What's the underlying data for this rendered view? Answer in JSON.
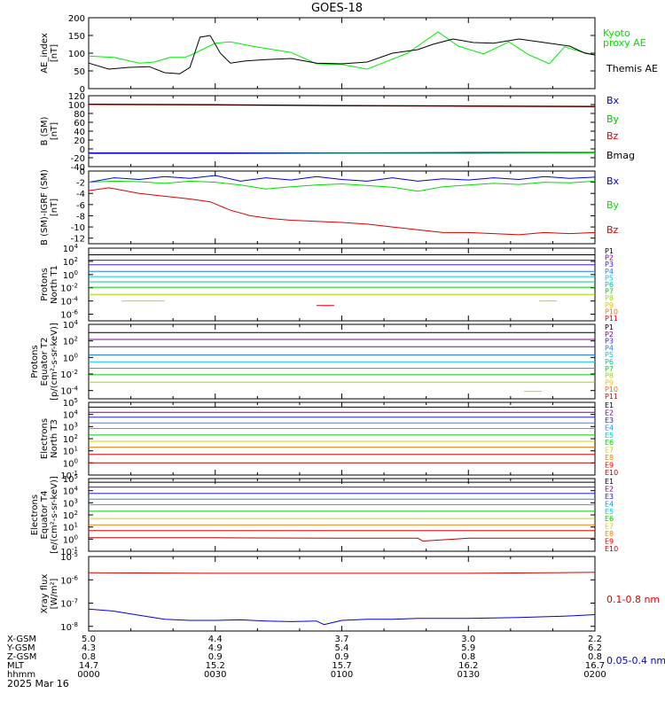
{
  "title": "GOES-18",
  "date_label": "2025 Mar 16",
  "orbit": {
    "row_labels": [
      "X-GSM",
      "Y-GSM",
      "Z-GSM",
      "MLT",
      "hhmm"
    ],
    "columns": [
      [
        "5.0",
        "4.3",
        "0.8",
        "14.7",
        "0000"
      ],
      [
        "4.4",
        "4.9",
        "0.9",
        "15.2",
        "0030"
      ],
      [
        "3.7",
        "5.4",
        "0.9",
        "15.7",
        "0100"
      ],
      [
        "3.0",
        "5.9",
        "0.8",
        "16.2",
        "0130"
      ],
      [
        "2.2",
        "6.2",
        "0.8",
        "16.7",
        "0200"
      ]
    ]
  },
  "chart_data": [
    {
      "type": "line",
      "ylabel": "AE_index [nT]",
      "ylim": [
        0,
        200
      ],
      "yscale": "linear",
      "yticks": [
        "0",
        "50",
        "100",
        "150",
        "200"
      ],
      "xlim_hours": [
        0,
        2
      ],
      "grid": false,
      "series": [
        {
          "name": "Kyoto proxy AE",
          "color": "#00ee00",
          "x": [
            0.0,
            0.1,
            0.2,
            0.26,
            0.32,
            0.38,
            0.42,
            0.5,
            0.56,
            0.66,
            0.8,
            0.9,
            1.0,
            1.1,
            1.16,
            1.26,
            1.38,
            1.46,
            1.56,
            1.66,
            1.74,
            1.82,
            1.88,
            1.94,
            2.0
          ],
          "y": [
            92,
            88,
            72,
            75,
            88,
            88,
            100,
            128,
            132,
            118,
            102,
            70,
            68,
            55,
            72,
            100,
            160,
            120,
            98,
            132,
            95,
            70,
            118,
            105,
            95
          ]
        },
        {
          "name": "Themis AE",
          "color": "#000000",
          "x": [
            0.0,
            0.08,
            0.16,
            0.24,
            0.3,
            0.36,
            0.4,
            0.44,
            0.48,
            0.52,
            0.56,
            0.62,
            0.7,
            0.8,
            0.9,
            1.0,
            1.1,
            1.2,
            1.3,
            1.36,
            1.44,
            1.52,
            1.6,
            1.7,
            1.8,
            1.9,
            1.96,
            2.0
          ],
          "y": [
            72,
            55,
            60,
            62,
            45,
            42,
            60,
            145,
            150,
            100,
            72,
            78,
            82,
            85,
            72,
            70,
            75,
            100,
            110,
            125,
            140,
            130,
            128,
            140,
            130,
            120,
            100,
            95
          ]
        }
      ]
    },
    {
      "type": "line",
      "ylabel": "B (SM) [nT]",
      "ylim": [
        -40,
        120
      ],
      "yscale": "linear",
      "yticks": [
        "-40",
        "-20",
        "0",
        "20",
        "40",
        "60",
        "80",
        "100",
        "120"
      ],
      "xlim_hours": [
        0,
        2
      ],
      "series": [
        {
          "name": "Bx",
          "color": "#0000cc",
          "x": [
            0,
            0.5,
            1,
            1.5,
            2
          ],
          "y": [
            -9,
            -9,
            -9,
            -8,
            -8
          ]
        },
        {
          "name": "By",
          "color": "#00cc00",
          "x": [
            0,
            0.5,
            1,
            1.5,
            2
          ],
          "y": [
            -11,
            -11,
            -10,
            -10,
            -9
          ]
        },
        {
          "name": "Bz",
          "color": "#dd0000",
          "x": [
            0,
            0.5,
            1,
            1.5,
            2
          ],
          "y": [
            100,
            99,
            97,
            96,
            95
          ]
        },
        {
          "name": "Bmag",
          "color": "#000000",
          "x": [
            0,
            0.5,
            1,
            1.5,
            2
          ],
          "y": [
            101,
            100,
            98,
            97,
            96
          ]
        }
      ]
    },
    {
      "type": "line",
      "ylabel": "B (SM)-IGRF (SM) [nT]",
      "ylim": [
        -13,
        0
      ],
      "yscale": "linear",
      "yticks": [
        "-12",
        "-10",
        "-8",
        "-6",
        "-4",
        "-2",
        "0"
      ],
      "xlim_hours": [
        0,
        2
      ],
      "series": [
        {
          "name": "Bx",
          "color": "#0000dd",
          "x": [
            0,
            0.1,
            0.2,
            0.3,
            0.4,
            0.5,
            0.6,
            0.7,
            0.8,
            0.9,
            1.0,
            1.1,
            1.2,
            1.3,
            1.4,
            1.5,
            1.6,
            1.7,
            1.8,
            1.9,
            2.0
          ],
          "y": [
            -2.0,
            -1.2,
            -1.5,
            -1.0,
            -1.3,
            -0.8,
            -1.8,
            -1.2,
            -1.6,
            -1.0,
            -1.5,
            -1.8,
            -1.2,
            -1.8,
            -1.4,
            -1.6,
            -1.2,
            -1.5,
            -1.0,
            -1.3,
            -1.1
          ]
        },
        {
          "name": "By",
          "color": "#00dd00",
          "x": [
            0,
            0.1,
            0.2,
            0.3,
            0.4,
            0.5,
            0.6,
            0.7,
            0.8,
            0.9,
            1.0,
            1.1,
            1.2,
            1.3,
            1.4,
            1.5,
            1.6,
            1.7,
            1.8,
            1.9,
            2.0
          ],
          "y": [
            -2.0,
            -1.8,
            -1.9,
            -2.2,
            -1.8,
            -2.0,
            -2.5,
            -3.2,
            -2.8,
            -2.5,
            -2.3,
            -2.6,
            -2.9,
            -3.6,
            -2.8,
            -2.5,
            -2.2,
            -2.4,
            -2.0,
            -2.1,
            -1.8
          ]
        },
        {
          "name": "Bz",
          "color": "#dd0000",
          "x": [
            0,
            0.08,
            0.2,
            0.3,
            0.4,
            0.48,
            0.56,
            0.64,
            0.72,
            0.8,
            0.9,
            1.0,
            1.1,
            1.2,
            1.3,
            1.4,
            1.5,
            1.6,
            1.7,
            1.8,
            1.9,
            2.0
          ],
          "y": [
            -3.5,
            -3.0,
            -4.0,
            -4.5,
            -5.0,
            -5.5,
            -7.0,
            -8.0,
            -8.5,
            -8.8,
            -9.0,
            -9.2,
            -9.5,
            -10.0,
            -10.5,
            -11.0,
            -11.0,
            -11.2,
            -11.4,
            -11.0,
            -11.2,
            -11.0
          ]
        }
      ]
    },
    {
      "type": "line",
      "ylabel": "Protons North T1",
      "yscale": "log",
      "ylim_exp": [
        -7,
        4
      ],
      "yticks": [
        "10^-6",
        "10^-4",
        "10^-2",
        "10^0",
        "10^2",
        "10^4"
      ],
      "xlim_hours": [
        0,
        2
      ],
      "series": [
        {
          "name": "P1",
          "color": "#000000",
          "x": [
            0,
            2
          ],
          "y": [
            "1e3",
            "1e3"
          ]
        },
        {
          "name": "P2",
          "color": "#7a0090",
          "x": [
            0,
            2
          ],
          "y": [
            "1.5e2",
            "1.5e2"
          ]
        },
        {
          "name": "P3",
          "color": "#3b1ee0",
          "x": [
            0,
            2
          ],
          "y": [
            "3e1",
            "3e1"
          ]
        },
        {
          "name": "P4",
          "color": "#1e7ef0",
          "x": [
            0,
            2
          ],
          "y": [
            "3",
            "3"
          ]
        },
        {
          "name": "P5",
          "color": "#00c8e0",
          "x": [
            0,
            2
          ],
          "y": [
            "5e-1",
            "5e-1"
          ]
        },
        {
          "name": "P6",
          "color": "#00c890",
          "x": [
            0,
            2
          ],
          "y": [
            "8e-2",
            "8e-2"
          ]
        },
        {
          "name": "P7",
          "color": "#00d000",
          "x": [
            0,
            2
          ],
          "y": [
            "1.2e-2",
            "1.2e-2"
          ]
        },
        {
          "name": "P8",
          "color": "#a0d800",
          "x": [
            0,
            2
          ],
          "y": [
            "1e-3",
            "1e-3"
          ]
        },
        {
          "name": "P9",
          "color": "#f0c000",
          "x": [
            0.13,
            0.3,
            1.78,
            1.85
          ],
          "y": [
            "1e-4",
            "1e-4",
            "1e-4",
            "1e-4"
          ]
        },
        {
          "name": "P10",
          "color": "#f07000",
          "x": [],
          "y": []
        },
        {
          "name": "P11",
          "color": "#dd0000",
          "x": [
            0.9,
            0.97
          ],
          "y": [
            "2e-5",
            "2e-5"
          ]
        }
      ]
    },
    {
      "type": "line",
      "ylabel": "Protons Equator T2 [p/(cm²-s-sr-keV)]",
      "yscale": "log",
      "ylim_exp": [
        -5,
        4
      ],
      "yticks": [
        "10^-4",
        "10^-2",
        "10^0",
        "10^2",
        "10^4"
      ],
      "xlim_hours": [
        0,
        2
      ],
      "series": [
        {
          "name": "P1",
          "color": "#000000",
          "x": [
            0,
            2
          ],
          "y": [
            "1e3",
            "1e3"
          ]
        },
        {
          "name": "P2",
          "color": "#7a0090",
          "x": [
            0,
            2
          ],
          "y": [
            "1.5e2",
            "1.5e2"
          ]
        },
        {
          "name": "P3",
          "color": "#3b1ee0",
          "x": [
            0,
            2
          ],
          "y": [
            "2e1",
            "2e1"
          ]
        },
        {
          "name": "P4",
          "color": "#1e7ef0",
          "x": [
            0,
            2
          ],
          "y": [
            "2",
            "2"
          ]
        },
        {
          "name": "P5",
          "color": "#00c8e0",
          "x": [
            0,
            2
          ],
          "y": [
            "3e-1",
            "3e-1"
          ]
        },
        {
          "name": "P6",
          "color": "#00c890",
          "x": [
            0,
            2
          ],
          "y": [
            "5e-2",
            "5e-2"
          ]
        },
        {
          "name": "P7",
          "color": "#00d000",
          "x": [
            0,
            2
          ],
          "y": [
            "8e-3",
            "8e-3"
          ]
        },
        {
          "name": "P8",
          "color": "#a0d800",
          "x": [
            0,
            2
          ],
          "y": [
            "1e-3",
            "1e-3"
          ]
        },
        {
          "name": "P9",
          "color": "#f0c000",
          "x": [
            1.72,
            1.79
          ],
          "y": [
            "8e-5",
            "8e-5"
          ]
        },
        {
          "name": "P10",
          "color": "#f07000",
          "x": [],
          "y": []
        },
        {
          "name": "P11",
          "color": "#dd0000",
          "x": [],
          "y": []
        }
      ]
    },
    {
      "type": "line",
      "ylabel": "Electrons North T3",
      "yscale": "log",
      "ylim_exp": [
        -1,
        5
      ],
      "yticks": [
        "10^-1",
        "10^0",
        "10^1",
        "10^2",
        "10^3",
        "10^4",
        "10^5"
      ],
      "xlim_hours": [
        0,
        2
      ],
      "series": [
        {
          "name": "E1",
          "color": "#000000",
          "x": [
            0,
            2
          ],
          "y": [
            "4e4",
            "4e4"
          ]
        },
        {
          "name": "E2",
          "color": "#7a0090",
          "x": [
            0,
            2
          ],
          "y": [
            "1.5e4",
            "1.5e4"
          ]
        },
        {
          "name": "E3",
          "color": "#2020e0",
          "x": [
            0,
            2
          ],
          "y": [
            "6e3",
            "6e3"
          ]
        },
        {
          "name": "E4",
          "color": "#1e90f0",
          "x": [
            0,
            2
          ],
          "y": [
            "2e3",
            "2e3"
          ]
        },
        {
          "name": "E5",
          "color": "#00c8e0",
          "x": [
            0,
            2
          ],
          "y": [
            "7e2",
            "7e2"
          ]
        },
        {
          "name": "E6",
          "color": "#00d000",
          "x": [
            0,
            2
          ],
          "y": [
            "2e2",
            "2e2"
          ]
        },
        {
          "name": "E7",
          "color": "#d0d000",
          "x": [
            0,
            2
          ],
          "y": [
            "6e1",
            "6e1"
          ]
        },
        {
          "name": "E8",
          "color": "#f08000",
          "x": [
            0,
            2
          ],
          "y": [
            "2e1",
            "2e1"
          ]
        },
        {
          "name": "E9",
          "color": "#dd0000",
          "x": [
            0,
            2
          ],
          "y": [
            "5",
            "5"
          ]
        },
        {
          "name": "E10",
          "color": "#c00000",
          "x": [
            0,
            2
          ],
          "y": [
            "1",
            "1"
          ]
        }
      ]
    },
    {
      "type": "line",
      "ylabel": "Electrons Equator T4 [e/(cm²-s-sr-keV)]",
      "yscale": "log",
      "ylim_exp": [
        -1,
        5
      ],
      "yticks": [
        "10^-1",
        "10^0",
        "10^1",
        "10^2",
        "10^3",
        "10^4",
        "10^5"
      ],
      "xlim_hours": [
        0,
        2
      ],
      "series": [
        {
          "name": "E1",
          "color": "#000000",
          "x": [
            0,
            2
          ],
          "y": [
            "5e4",
            "5e4"
          ]
        },
        {
          "name": "E2",
          "color": "#7a0090",
          "x": [
            0,
            2
          ],
          "y": [
            "2e4",
            "2e4"
          ]
        },
        {
          "name": "E3",
          "color": "#2020e0",
          "x": [
            0,
            2
          ],
          "y": [
            "6e3",
            "6e3"
          ]
        },
        {
          "name": "E4",
          "color": "#1e90f0",
          "x": [
            0,
            2
          ],
          "y": [
            "2e3",
            "2e3"
          ]
        },
        {
          "name": "E5",
          "color": "#00c8e0",
          "x": [
            0,
            2
          ],
          "y": [
            "7e2",
            "7e2"
          ]
        },
        {
          "name": "E6",
          "color": "#00d000",
          "x": [
            0,
            2
          ],
          "y": [
            "2e2",
            "2e2"
          ]
        },
        {
          "name": "E7",
          "color": "#d0d000",
          "x": [
            0,
            2
          ],
          "y": [
            "5e1",
            "5e1"
          ]
        },
        {
          "name": "E8",
          "color": "#f08000",
          "x": [
            0,
            2
          ],
          "y": [
            "1.5e1",
            "1.5e1"
          ]
        },
        {
          "name": "E9",
          "color": "#dd0000",
          "x": [
            0,
            2
          ],
          "y": [
            "5",
            "5"
          ]
        },
        {
          "name": "E10",
          "color": "#c00000",
          "x": [
            0,
            0.5,
            1,
            1.3,
            1.32,
            1.5,
            2
          ],
          "y": [
            "1.3",
            "1.3",
            "1.2",
            "1.2",
            "7e-1",
            "1.2",
            "1.2"
          ]
        }
      ]
    },
    {
      "type": "line",
      "ylabel": "Xray flux [W/m²]",
      "yscale": "log",
      "ylim_exp": [
        -8.2,
        -5
      ],
      "yticks": [
        "10^-8",
        "10^-7",
        "10^-6",
        "10^-5"
      ],
      "xlim_hours": [
        0,
        2
      ],
      "series": [
        {
          "name": "0.1-0.8 nm",
          "color": "#dd0000",
          "x": [
            0,
            0.5,
            1,
            1.5,
            2
          ],
          "y": [
            "2e-6",
            "1.9e-6",
            "1.9e-6",
            "1.9e-6",
            "2.1e-6"
          ]
        },
        {
          "name": "0.05-0.4 nm",
          "color": "#0000dd",
          "x": [
            0,
            0.1,
            0.2,
            0.3,
            0.4,
            0.5,
            0.6,
            0.7,
            0.8,
            0.9,
            0.93,
            1.0,
            1.1,
            1.2,
            1.3,
            1.4,
            1.5,
            1.6,
            1.7,
            1.8,
            1.9,
            2.0
          ],
          "y": [
            "5.5e-8",
            "4.5e-8",
            "3e-8",
            "2e-8",
            "1.8e-8",
            "1.8e-8",
            "1.9e-8",
            "1.7e-8",
            "1.6e-8",
            "1.7e-8",
            "1.2e-8",
            "1.8e-8",
            "2e-8",
            "2e-8",
            "2.2e-8",
            "2.2e-8",
            "2.2e-8",
            "2.3e-8",
            "2.4e-8",
            "2.6e-8",
            "2.8e-8",
            "3.2e-8"
          ]
        }
      ]
    }
  ]
}
